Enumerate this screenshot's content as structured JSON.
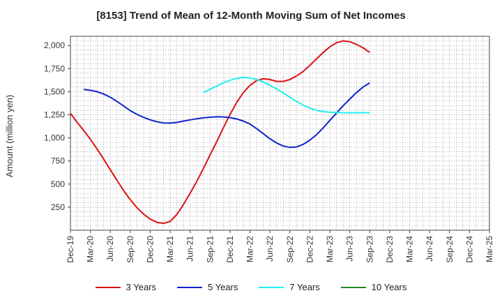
{
  "chart_data": {
    "type": "line",
    "title": "[8153]  Trend of Mean of 12-Month Moving Sum of Net Incomes",
    "ylabel": "Amount (million yen)",
    "xlabel": "",
    "x_ticks": [
      "Dec-19",
      "Mar-20",
      "Jun-20",
      "Sep-20",
      "Dec-20",
      "Mar-21",
      "Jun-21",
      "Sep-21",
      "Dec-21",
      "Mar-22",
      "Jun-22",
      "Sep-22",
      "Dec-22",
      "Mar-23",
      "Jun-23",
      "Sep-23",
      "Dec-23",
      "Mar-24",
      "Jun-24",
      "Sep-24",
      "Dec-24",
      "Mar-25"
    ],
    "y_ticks": [
      250,
      500,
      750,
      1000,
      1250,
      1500,
      1750,
      2000
    ],
    "y_tick_labels": [
      "250",
      "500",
      "750",
      "1,000",
      "1,250",
      "1,500",
      "1,750",
      "2,000"
    ],
    "ylim": [
      0,
      2100
    ],
    "grid": true,
    "legend_position": "bottom",
    "series": [
      {
        "name": "3 Years",
        "color": "#dd1111",
        "start_index": 0,
        "values": [
          1265,
          1170,
          1080,
          985,
          880,
          770,
          655,
          540,
          430,
          330,
          245,
          175,
          120,
          85,
          75,
          95,
          170,
          280,
          400,
          530,
          670,
          815,
          960,
          1110,
          1255,
          1385,
          1490,
          1570,
          1620,
          1640,
          1632,
          1612,
          1612,
          1632,
          1670,
          1720,
          1785,
          1855,
          1925,
          1985,
          2030,
          2050,
          2042,
          2012,
          1975,
          1925
        ]
      },
      {
        "name": "5 Years",
        "color": "#1122cc",
        "start_index": 2,
        "values": [
          1525,
          1515,
          1500,
          1475,
          1440,
          1395,
          1345,
          1295,
          1255,
          1222,
          1195,
          1175,
          1162,
          1160,
          1167,
          1182,
          1195,
          1207,
          1217,
          1224,
          1228,
          1227,
          1220,
          1205,
          1182,
          1150,
          1100,
          1045,
          990,
          945,
          912,
          897,
          902,
          930,
          975,
          1035,
          1108,
          1188,
          1268,
          1348,
          1420,
          1490,
          1550,
          1595
        ]
      },
      {
        "name": "7 Years",
        "color": "#22eeee",
        "start_index": 20,
        "values": [
          1490,
          1525,
          1562,
          1595,
          1623,
          1645,
          1655,
          1648,
          1632,
          1605,
          1570,
          1530,
          1485,
          1440,
          1395,
          1355,
          1322,
          1300,
          1285,
          1277,
          1274,
          1272,
          1272,
          1272,
          1273,
          1272
        ]
      },
      {
        "name": "10 Years",
        "color": "#228822",
        "start_index": 0,
        "values": []
      }
    ]
  }
}
